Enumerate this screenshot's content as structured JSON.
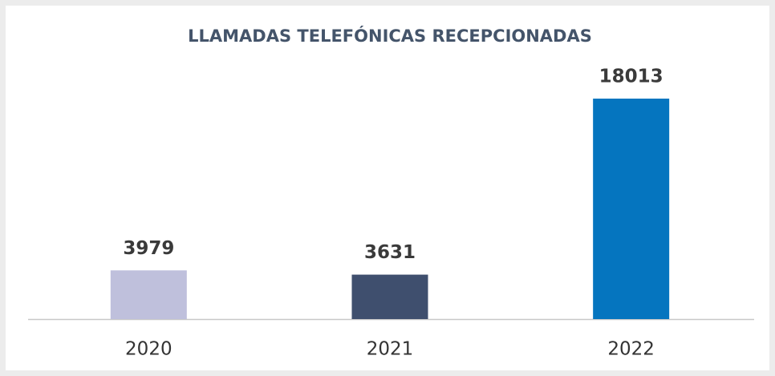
{
  "chart_data": {
    "type": "bar",
    "title": "LLAMADAS TELEFÓNICAS RECEPCIONADAS",
    "categories": [
      "2020",
      "2021",
      "2022"
    ],
    "values": [
      3979,
      3631,
      18013
    ],
    "colors": [
      "#bfc0dc",
      "#3f4f6e",
      "#0575bf"
    ]
  }
}
